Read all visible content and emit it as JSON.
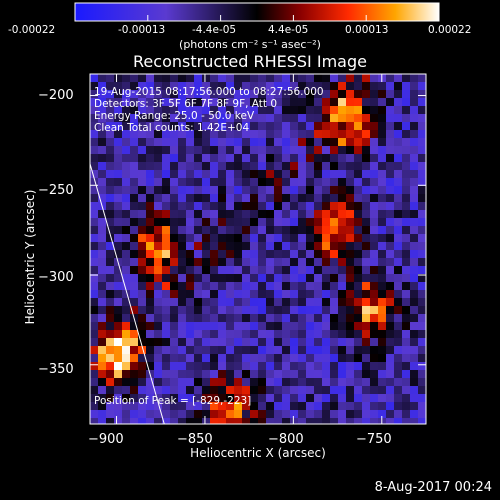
{
  "colorbar": {
    "tick_labels": [
      "-0.00022",
      "-0.00013",
      "-4.4e-05",
      "4.4e-05",
      "0.00013",
      "0.00022"
    ],
    "units": "(photons cm⁻² s⁻¹ asec⁻²)"
  },
  "chart_data": {
    "type": "heatmap",
    "title": "Reconstructed RHESSI Image",
    "xlabel": "Heliocentric X (arcsec)",
    "ylabel": "Heliocentric Y (arcsec)",
    "xlim": [
      -915,
      -725
    ],
    "ylim": [
      -383,
      -188
    ],
    "x_ticks": [
      -900,
      -850,
      -800,
      -750
    ],
    "y_ticks": [
      -200,
      -250,
      -300,
      -350
    ],
    "x_tick_labels": [
      "−900",
      "−850",
      "−800",
      "−750"
    ],
    "y_tick_labels": [
      "−200",
      "−250",
      "−300",
      "−350"
    ],
    "colorbar_range": [
      -0.00022,
      0.00022
    ],
    "limb_line": [
      [
        -915,
        -238
      ],
      [
        -873,
        -383
      ]
    ],
    "annotations": [
      "19-Aug-2015 08:17:56.000 to 08:27:56.000",
      "Detectors: 3F 5F 6F 7F 8F 9F, Att 0",
      "Energy Range: 25.0 - 50.0 keV",
      "Clean    Total counts: 1.42E+04"
    ],
    "peak_label": "Position of Peak = [-829,-223]",
    "bright_sources": [
      {
        "x": -770,
        "y": -213
      },
      {
        "x": -777,
        "y": -273
      },
      {
        "x": -758,
        "y": -318
      },
      {
        "x": -838,
        "y": -373
      },
      {
        "x": -900,
        "y": -340
      },
      {
        "x": -880,
        "y": -280
      }
    ]
  },
  "footer_date": "8-Aug-2017 00:24"
}
